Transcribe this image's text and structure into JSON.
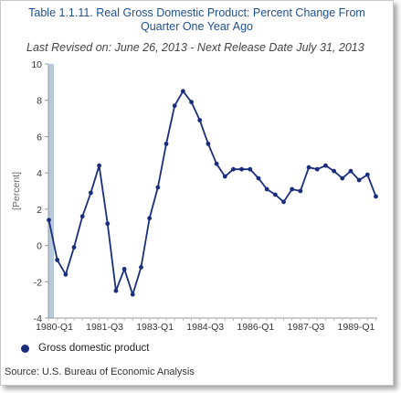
{
  "chart_data": {
    "type": "line",
    "title_line1": "Table 1.1.11. Real Gross Domestic Product: Percent Change From",
    "title_line2": "Quarter One Year Ago",
    "subtitle": "Last Revised on: June 26, 2013 - Next Release Date July 31, 2013",
    "ylabel": "[Percent]",
    "xlabel": "",
    "ylim": [
      -4,
      10
    ],
    "yticks": [
      -4,
      -2,
      0,
      2,
      4,
      6,
      8,
      10
    ],
    "xtick_labels": [
      "1980-Q1",
      "1981-Q3",
      "1983-Q1",
      "1984-Q3",
      "1986-Q1",
      "1987-Q3",
      "1989-Q1"
    ],
    "grid": "none",
    "legend_position": "bottom-left",
    "series_color": "#1a2d7c",
    "highlight_band_color": "#b7c9dd",
    "series": [
      {
        "name": "Gross domestic product",
        "x": [
          "1980-Q1",
          "1980-Q2",
          "1980-Q3",
          "1980-Q4",
          "1981-Q1",
          "1981-Q2",
          "1981-Q3",
          "1981-Q4",
          "1982-Q1",
          "1982-Q2",
          "1982-Q3",
          "1982-Q4",
          "1983-Q1",
          "1983-Q2",
          "1983-Q3",
          "1983-Q4",
          "1984-Q1",
          "1984-Q2",
          "1984-Q3",
          "1984-Q4",
          "1985-Q1",
          "1985-Q2",
          "1985-Q3",
          "1985-Q4",
          "1986-Q1",
          "1986-Q2",
          "1986-Q3",
          "1986-Q4",
          "1987-Q1",
          "1987-Q2",
          "1987-Q3",
          "1987-Q4",
          "1988-Q1",
          "1988-Q2",
          "1988-Q3",
          "1988-Q4",
          "1989-Q1",
          "1989-Q2",
          "1989-Q3",
          "1989-Q4"
        ],
        "values": [
          1.4,
          -0.8,
          -1.6,
          -0.1,
          1.6,
          2.9,
          4.4,
          1.2,
          -2.5,
          -1.3,
          -2.7,
          -1.2,
          1.5,
          3.2,
          5.6,
          7.7,
          8.5,
          7.9,
          6.9,
          5.6,
          4.5,
          3.8,
          4.2,
          4.2,
          4.2,
          3.7,
          3.1,
          2.8,
          2.4,
          3.1,
          3.0,
          4.3,
          4.2,
          4.4,
          4.1,
          3.7,
          4.1,
          3.6,
          3.9,
          2.7
        ]
      }
    ]
  },
  "legend": {
    "label": "Gross domestic product"
  },
  "source": "Source: U.S. Bureau of Economic Analysis"
}
